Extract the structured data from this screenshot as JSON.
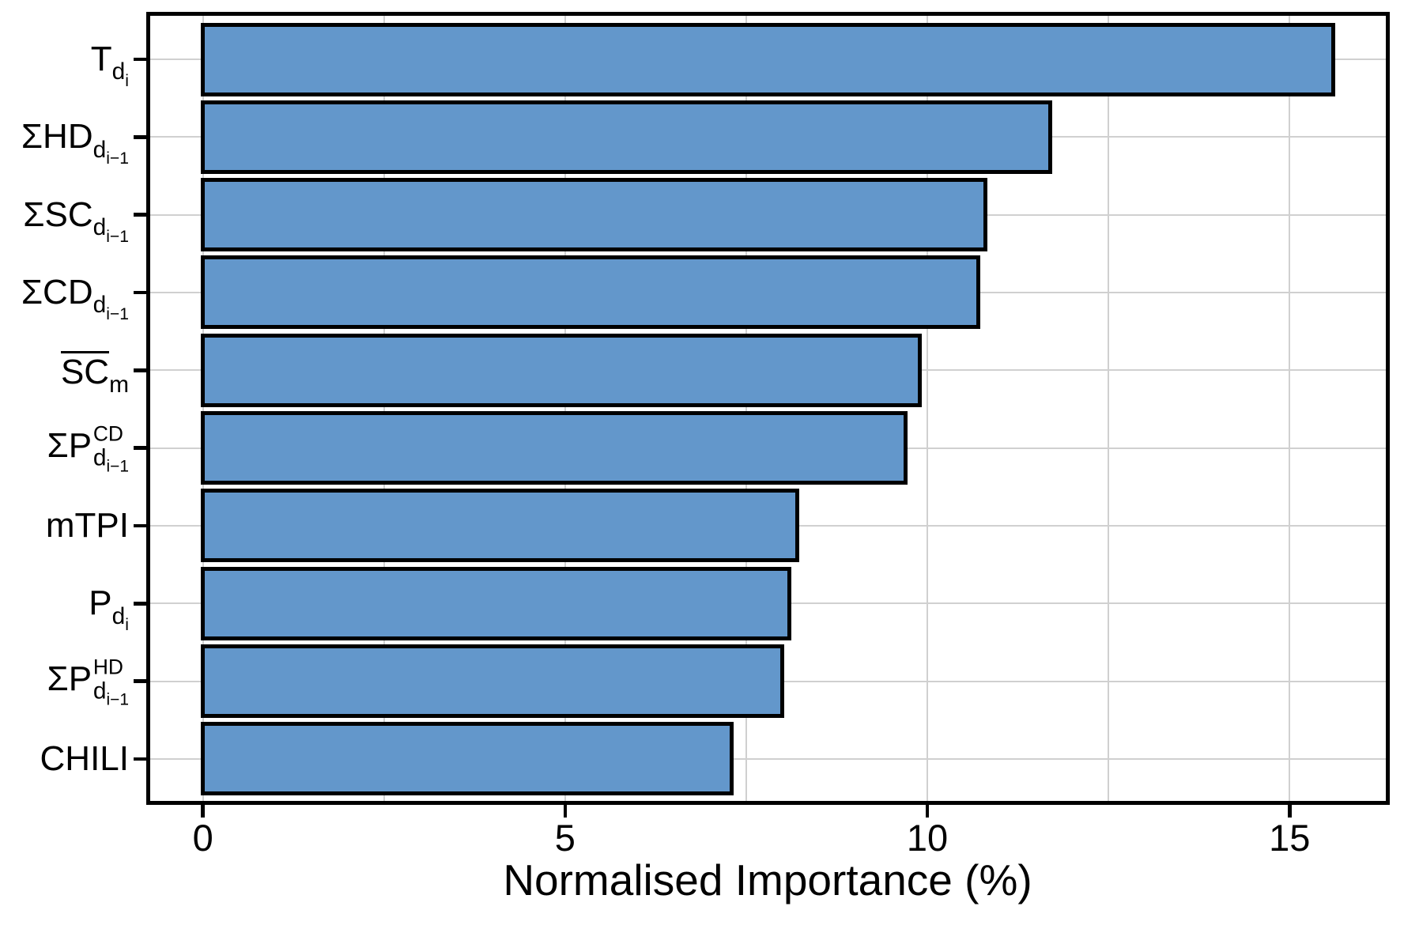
{
  "chart_data": {
    "type": "bar",
    "orientation": "horizontal",
    "title": "",
    "xlabel": "Normalised Importance (%)",
    "ylabel": "",
    "xlim": [
      -0.76,
      16.35
    ],
    "xticks": [
      0,
      5,
      10,
      15
    ],
    "xtick_labels": [
      "0",
      "5",
      "10",
      "15"
    ],
    "minor_xticks": [
      2.5,
      7.5,
      12.5
    ],
    "grid": "major-and-minor-vertical, horizontal-at-row-centers",
    "legend": "none",
    "categories_plain": [
      "T_di",
      "ΣHD_di−1",
      "ΣSC_di−1",
      "ΣCD_di−1",
      "S̄C̄_m",
      "ΣP^CD_di−1",
      "mTPI",
      "P_di",
      "ΣP^HD_di−1",
      "CHILI"
    ],
    "categories_rich": [
      [
        {
          "m": "n",
          "t": "T"
        },
        {
          "m": "sub",
          "t": "d"
        },
        {
          "m": "subsub",
          "t": "i"
        }
      ],
      [
        {
          "m": "n",
          "t": "ΣHD"
        },
        {
          "m": "sub",
          "t": "d"
        },
        {
          "m": "subsub",
          "t": "i−1"
        }
      ],
      [
        {
          "m": "n",
          "t": "ΣSC"
        },
        {
          "m": "sub",
          "t": "d"
        },
        {
          "m": "subsub",
          "t": "i−1"
        }
      ],
      [
        {
          "m": "n",
          "t": "ΣCD"
        },
        {
          "m": "sub",
          "t": "d"
        },
        {
          "m": "subsub",
          "t": "i−1"
        }
      ],
      [
        {
          "m": "over",
          "t": "SC"
        },
        {
          "m": "sub",
          "t": "m"
        }
      ],
      [
        {
          "m": "n",
          "t": "ΣP"
        },
        {
          "m": "supsub",
          "sup": "CD",
          "sub": "d",
          "subsub": "i−1"
        }
      ],
      [
        {
          "m": "n",
          "t": "mTPI"
        }
      ],
      [
        {
          "m": "n",
          "t": "P"
        },
        {
          "m": "sub",
          "t": "d"
        },
        {
          "m": "subsub",
          "t": "i"
        }
      ],
      [
        {
          "m": "n",
          "t": "ΣP"
        },
        {
          "m": "supsub",
          "sup": "HD",
          "sub": "d",
          "subsub": "i−1"
        }
      ],
      [
        {
          "m": "n",
          "t": "CHILI"
        }
      ]
    ],
    "values": [
      15.6,
      11.7,
      10.8,
      10.7,
      9.9,
      9.7,
      8.2,
      8.1,
      8.0,
      7.3
    ],
    "bar_fill": "#6397cb",
    "bar_stroke": "#000000",
    "grid_color": "#d0d0d0",
    "axis_color": "#000000",
    "text_color": "#000000",
    "background": "#ffffff"
  }
}
